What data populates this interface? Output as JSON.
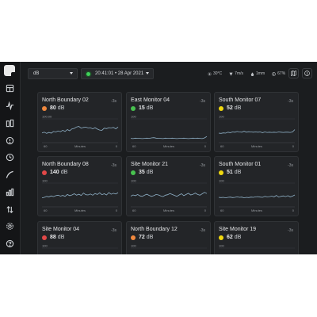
{
  "toolbar": {
    "unit_select": "dB",
    "datetime": "20:41:01 • 28 Apr 2021",
    "temperature": "30°C",
    "wind": "7m/s",
    "rain": "1mm",
    "humidity": "67%"
  },
  "colors": {
    "red": "#e24848",
    "orange": "#f0883e",
    "green": "#48c24f",
    "yellow": "#f1d90f",
    "line": "#8fb0c6"
  },
  "cards": [
    {
      "name": "North Boundary 02",
      "ago": "-3s",
      "value": "80",
      "unit": "dB",
      "status": "orange",
      "ymax": "100.00",
      "xlabel": "Minutes",
      "xmin": "60",
      "xmax": "0",
      "series": [
        41,
        44,
        39,
        43,
        40,
        47,
        45,
        49,
        46,
        52,
        47,
        55,
        50,
        58,
        60,
        66,
        68,
        61,
        64,
        65,
        62,
        63,
        58,
        63,
        57,
        53,
        52,
        61,
        59,
        63,
        62,
        64,
        58,
        66
      ]
    },
    {
      "name": "East Monitor 04",
      "ago": "-3s",
      "value": "15",
      "unit": "dB",
      "status": "green",
      "ymax": "100",
      "xlabel": "Minutes",
      "xmin": "60",
      "xmax": "0",
      "series": [
        18,
        17,
        19,
        18,
        18,
        17,
        18,
        19,
        18,
        20,
        21,
        19,
        18,
        18,
        17,
        19,
        18,
        18,
        19,
        18,
        17,
        18,
        18,
        19,
        18,
        17,
        18,
        19,
        18,
        19,
        18,
        17,
        20,
        26
      ]
    },
    {
      "name": "South Monitor 07",
      "ago": "-3s",
      "value": "52",
      "unit": "dB",
      "status": "yellow",
      "ymax": "100",
      "xlabel": "Minutes",
      "xmin": "60",
      "xmax": "0",
      "series": [
        40,
        39,
        41,
        40,
        44,
        42,
        45,
        44,
        47,
        45,
        44,
        48,
        44,
        46,
        45,
        44,
        45,
        44,
        45,
        42,
        45,
        43,
        44,
        43,
        44,
        43,
        45,
        44,
        43,
        44,
        44,
        43,
        45,
        55
      ]
    },
    {
      "name": "North Boundary 08",
      "ago": "-3s",
      "value": "140",
      "unit": "dB",
      "status": "red",
      "ymax": "100",
      "xlabel": "Minutes",
      "xmin": "60",
      "xmax": "0",
      "series": [
        38,
        40,
        44,
        42,
        46,
        43,
        47,
        49,
        45,
        48,
        44,
        52,
        47,
        50,
        55,
        49,
        53,
        48,
        58,
        51,
        50,
        54,
        49,
        56,
        52,
        59,
        51,
        55,
        50,
        60,
        53,
        57,
        54,
        60
      ]
    },
    {
      "name": "Site Monitor 21",
      "ago": "-3s",
      "value": "35",
      "unit": "dB",
      "status": "green",
      "ymax": "100",
      "xlabel": "Minutes",
      "xmin": "60",
      "xmax": "0",
      "series": [
        45,
        50,
        47,
        52,
        46,
        44,
        49,
        53,
        48,
        44,
        47,
        52,
        50,
        46,
        43,
        49,
        51,
        56,
        52,
        48,
        44,
        50,
        55,
        47,
        52,
        57,
        50,
        53,
        58,
        52,
        49,
        55,
        61,
        56
      ]
    },
    {
      "name": "South Monitor 01",
      "ago": "-3s",
      "value": "51",
      "unit": "dB",
      "status": "yellow",
      "ymax": "100",
      "xlabel": "Minutes",
      "xmin": "60",
      "xmax": "0",
      "series": [
        40,
        39,
        40,
        38,
        40,
        41,
        39,
        40,
        42,
        40,
        41,
        38,
        40,
        39,
        41,
        40,
        42,
        43,
        41,
        40,
        44,
        42,
        43,
        45,
        42,
        48,
        41,
        44,
        46,
        43,
        47,
        42,
        45,
        50
      ]
    },
    {
      "name": "Site Monitor 04",
      "ago": "-3s",
      "value": "88",
      "unit": "dB",
      "status": "red",
      "ymax": "100",
      "xlabel": "Minutes",
      "xmin": "60",
      "xmax": "0",
      "series": [
        50,
        52,
        51,
        53,
        52,
        54,
        53,
        55,
        54,
        56,
        55,
        57
      ]
    },
    {
      "name": "North Boundary 12",
      "ago": "-3s",
      "value": "72",
      "unit": "dB",
      "status": "orange",
      "ymax": "100",
      "xlabel": "Minutes",
      "xmin": "60",
      "xmax": "0",
      "series": [
        50,
        51,
        52,
        51,
        53,
        52,
        54,
        53,
        52,
        54,
        53,
        55
      ]
    },
    {
      "name": "Site Monitor 19",
      "ago": "-3s",
      "value": "62",
      "unit": "dB",
      "status": "yellow",
      "ymax": "100",
      "xlabel": "Minutes",
      "xmin": "60",
      "xmax": "0",
      "series": [
        48,
        49,
        48,
        50,
        49,
        51,
        50,
        49,
        51,
        50,
        52,
        51
      ]
    }
  ]
}
